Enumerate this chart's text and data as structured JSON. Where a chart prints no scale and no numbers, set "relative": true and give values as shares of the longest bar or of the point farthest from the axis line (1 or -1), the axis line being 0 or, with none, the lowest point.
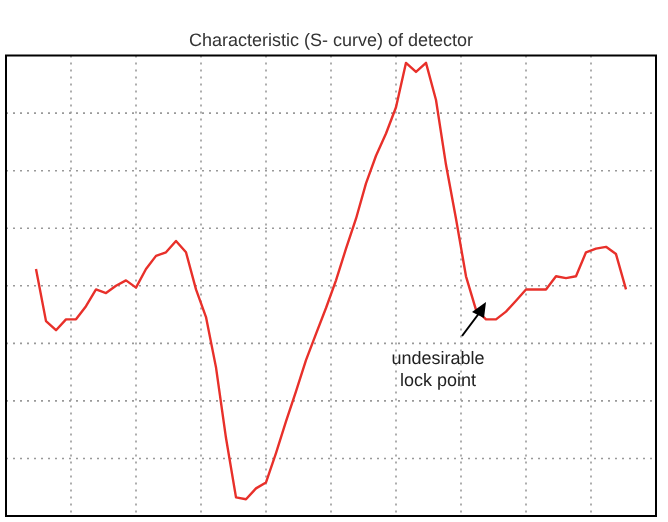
{
  "chart_data": {
    "type": "line",
    "title": "Characteristic (S- curve) of detector",
    "relative": true,
    "grid": true,
    "legend": false,
    "marker": "none",
    "line_style": "solid",
    "categories": [
      null,
      null,
      null,
      null,
      null,
      null,
      null,
      null,
      null,
      null,
      null,
      null,
      null,
      null,
      null,
      null,
      null,
      null,
      null,
      null,
      null,
      null,
      null,
      null,
      null,
      null,
      null,
      null,
      null,
      null,
      null,
      null,
      null,
      null,
      null,
      null,
      null,
      null,
      null,
      null,
      null,
      null,
      null,
      null,
      null,
      null,
      null,
      null,
      null,
      null,
      null,
      null,
      null,
      null,
      null,
      null,
      null,
      null,
      null,
      null,
      null,
      null,
      null,
      null,
      null,
      null
    ],
    "series": [
      {
        "color": "#e8302a",
        "values": [
          null,
          null,
          null,
          0.545,
          0.43,
          0.41,
          0.434,
          0.434,
          0.463,
          0.5,
          0.492,
          0.508,
          0.52,
          0.504,
          0.545,
          0.574,
          0.582,
          0.607,
          0.582,
          0.5,
          0.439,
          0.328,
          0.172,
          0.041,
          0.037,
          0.061,
          0.074,
          0.139,
          0.209,
          0.275,
          0.344,
          0.402,
          0.459,
          0.52,
          0.59,
          0.656,
          0.734,
          0.795,
          0.844,
          0.902,
          1,
          0.98,
          1,
          0.918,
          0.775,
          0.656,
          0.529,
          0.455,
          0.434,
          0.434,
          0.451,
          0.475,
          0.5,
          0.5,
          0.5,
          0.529,
          0.525,
          0.529,
          0.582,
          0.59,
          0.594,
          0.578,
          0.5,
          null,
          null,
          null
        ]
      }
    ],
    "annotations": [
      "undesirable\nlock point"
    ]
  }
}
